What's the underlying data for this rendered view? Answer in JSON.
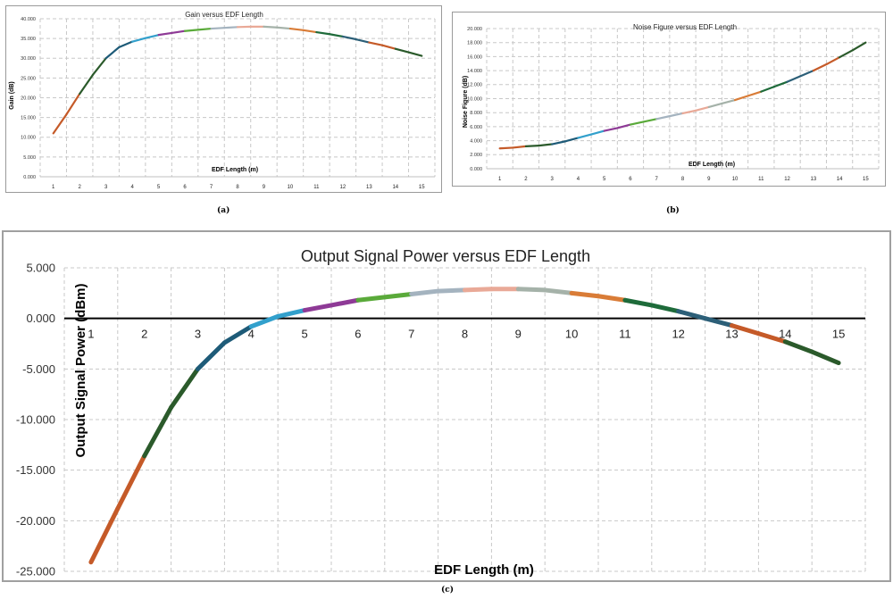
{
  "colors": [
    "#c55a28",
    "#2b5a2b",
    "#1e5b78",
    "#32a0cc",
    "#8e3a96",
    "#5aaa3a",
    "#a4b3bf",
    "#e9a997",
    "#a5b2a9",
    "#d97c37",
    "#1e6b3a",
    "#2c5f78"
  ],
  "panels": {
    "a": {
      "label": "(a)"
    },
    "b": {
      "label": "(b)"
    },
    "c": {
      "label": "(c)"
    }
  },
  "chart_data": [
    {
      "id": "a",
      "type": "line",
      "title": "Gain versus EDF Length",
      "xlabel": "EDF Length (m)",
      "ylabel": "Gain (dB)",
      "x": [
        1,
        1.5,
        2,
        2.5,
        3,
        3.5,
        4,
        4.5,
        5,
        5.5,
        6,
        6.5,
        7,
        7.5,
        8,
        8.5,
        9,
        9.5,
        10,
        10.5,
        11,
        11.5,
        12,
        12.5,
        13,
        13.5,
        14,
        14.5,
        15
      ],
      "values": [
        11.0,
        15.8,
        21.0,
        25.8,
        30.0,
        32.8,
        34.2,
        35.1,
        35.9,
        36.4,
        36.9,
        37.2,
        37.5,
        37.7,
        37.9,
        38.0,
        38.0,
        37.8,
        37.5,
        37.1,
        36.6,
        36.1,
        35.5,
        34.8,
        34.0,
        33.3,
        32.4,
        31.5,
        30.6
      ],
      "xticks": [
        "1",
        "2",
        "3",
        "4",
        "5",
        "6",
        "7",
        "8",
        "9",
        "10",
        "11",
        "12",
        "13",
        "14",
        "15"
      ],
      "ytick_values": [
        0,
        5,
        10,
        15,
        20,
        25,
        30,
        35,
        40
      ],
      "ytick_labels": [
        "0.000",
        "5.000",
        "10.000",
        "15.000",
        "20.000",
        "25.000",
        "30.000",
        "35.000",
        "40.000"
      ],
      "ylim": [
        0,
        40
      ],
      "grid": true
    },
    {
      "id": "b",
      "type": "line",
      "title": "Noise Figure versus EDF Length",
      "xlabel": "EDF Length (m)",
      "ylabel": "Noise Figure (dB)",
      "x": [
        1,
        1.5,
        2,
        2.5,
        3,
        3.5,
        4,
        4.5,
        5,
        5.5,
        6,
        6.5,
        7,
        7.5,
        8,
        8.5,
        9,
        9.5,
        10,
        10.5,
        11,
        11.5,
        12,
        12.5,
        13,
        13.5,
        14,
        14.5,
        15
      ],
      "values": [
        2.9,
        3.0,
        3.2,
        3.3,
        3.5,
        3.9,
        4.4,
        4.9,
        5.4,
        5.8,
        6.3,
        6.7,
        7.1,
        7.5,
        7.9,
        8.3,
        8.8,
        9.3,
        9.8,
        10.4,
        11.0,
        11.7,
        12.4,
        13.2,
        14.0,
        14.9,
        15.9,
        16.9,
        18.0
      ],
      "xticks": [
        "1",
        "2",
        "3",
        "4",
        "5",
        "6",
        "7",
        "8",
        "9",
        "10",
        "11",
        "12",
        "13",
        "14",
        "15"
      ],
      "ytick_values": [
        0,
        2,
        4,
        6,
        8,
        10,
        12,
        14,
        16,
        18,
        20
      ],
      "ytick_labels": [
        "0.000",
        "2.000",
        "4.000",
        "6.000",
        "8.000",
        "10.000",
        "12.000",
        "14.000",
        "16.000",
        "18.000",
        "20.000"
      ],
      "ylim": [
        0,
        20
      ],
      "grid": true
    },
    {
      "id": "c",
      "type": "line",
      "title": "Output Signal Power versus EDF Length",
      "xlabel": "EDF Length (m)",
      "ylabel": "Output Signal Power (dBm)",
      "x": [
        1,
        1.5,
        2,
        2.5,
        3,
        3.5,
        4,
        4.5,
        5,
        5.5,
        6,
        6.5,
        7,
        7.5,
        8,
        8.5,
        9,
        9.5,
        10,
        10.5,
        11,
        11.5,
        12,
        12.5,
        13,
        13.5,
        14,
        14.5,
        15
      ],
      "values": [
        -24.1,
        -18.8,
        -13.6,
        -8.8,
        -5.0,
        -2.4,
        -0.8,
        0.2,
        0.8,
        1.3,
        1.8,
        2.1,
        2.4,
        2.7,
        2.8,
        2.9,
        2.9,
        2.8,
        2.5,
        2.2,
        1.8,
        1.3,
        0.7,
        0.0,
        -0.7,
        -1.5,
        -2.3,
        -3.3,
        -4.4
      ],
      "xticks": [
        "1",
        "2",
        "3",
        "4",
        "5",
        "6",
        "7",
        "8",
        "9",
        "10",
        "11",
        "12",
        "13",
        "14",
        "15"
      ],
      "ytick_values": [
        -25,
        -20,
        -15,
        -10,
        -5,
        0,
        5
      ],
      "ytick_labels": [
        "-25.000",
        "-20.000",
        "-15.000",
        "-10.000",
        "-5.000",
        "0.000",
        "5.000"
      ],
      "ylim": [
        -25,
        5
      ],
      "grid": true
    }
  ]
}
